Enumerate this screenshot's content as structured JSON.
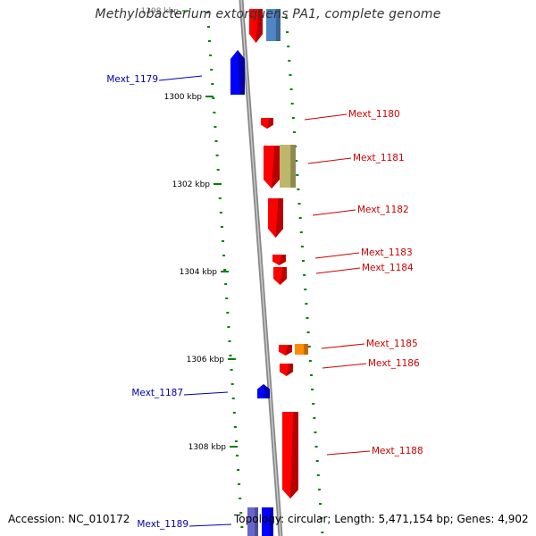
{
  "title": "Methylobacterium extorquens PA1, complete genome",
  "footer": {
    "accession": "Accession: NC_010172",
    "summary": "Topology: circular; Length: 5,471,154 bp; Genes: 4,902"
  },
  "kbp_labels": [
    "1298 kbp",
    "1300 kbp",
    "1302 kbp",
    "1304 kbp",
    "1306 kbp",
    "1308 kbp"
  ],
  "genes": [
    {
      "name": "Mext_1179",
      "strand": "-",
      "color": "#0000ff"
    },
    {
      "name": "Mext_1180",
      "strand": "+",
      "color": "#ff0000"
    },
    {
      "name": "Mext_1181",
      "strand": "+",
      "color": "#ff0000"
    },
    {
      "name": "Mext_1182",
      "strand": "+",
      "color": "#ff0000"
    },
    {
      "name": "Mext_1183",
      "strand": "+",
      "color": "#ff0000"
    },
    {
      "name": "Mext_1184",
      "strand": "+",
      "color": "#ff0000"
    },
    {
      "name": "Mext_1185",
      "strand": "+",
      "color": "#ff0000"
    },
    {
      "name": "Mext_1186",
      "strand": "+",
      "color": "#ff0000"
    },
    {
      "name": "Mext_1187",
      "strand": "-",
      "color": "#0000ff"
    },
    {
      "name": "Mext_1188",
      "strand": "+",
      "color": "#ff0000"
    },
    {
      "name": "Mext_1189",
      "strand": "-",
      "color": "#0000ff"
    }
  ],
  "colors": {
    "forward": "#ff0000",
    "reverse": "#0000ff",
    "backbone": "#808080",
    "tick": "#008000",
    "feature_blue_light": "#4f86c6",
    "feature_olive": "#bdb76b",
    "feature_orange": "#ff8c00"
  }
}
